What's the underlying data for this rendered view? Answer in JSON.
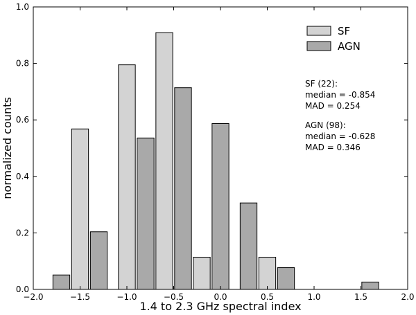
{
  "chart_data": {
    "type": "bar",
    "title": "",
    "xlabel": "1.4 to 2.3 GHz spectral index",
    "ylabel": "normalized counts",
    "xlim": [
      -2.0,
      2.0
    ],
    "ylim": [
      0.0,
      1.0
    ],
    "xticks": [
      "−2.0",
      "−1.5",
      "−1.0",
      "−0.5",
      "0.0",
      "0.5",
      "1.0",
      "1.5",
      "2.0"
    ],
    "yticks": [
      "0.0",
      "0.2",
      "0.4",
      "0.6",
      "0.8",
      "1.0"
    ],
    "grid": false,
    "legend_position": "top-right",
    "bar_width": 0.18,
    "series": [
      {
        "name": "SF",
        "color": "#d3d3d3",
        "bars": [
          {
            "x": -1.5,
            "value": 0.568
          },
          {
            "x": -1.0,
            "value": 0.795
          },
          {
            "x": -0.6,
            "value": 0.909
          },
          {
            "x": -0.2,
            "value": 0.114
          },
          {
            "x": 0.5,
            "value": 0.114
          }
        ]
      },
      {
        "name": "AGN",
        "color": "#a9a9a9",
        "bars": [
          {
            "x": -1.7,
            "value": 0.051
          },
          {
            "x": -1.3,
            "value": 0.204
          },
          {
            "x": -0.8,
            "value": 0.536
          },
          {
            "x": -0.4,
            "value": 0.714
          },
          {
            "x": 0.0,
            "value": 0.587
          },
          {
            "x": 0.3,
            "value": 0.306
          },
          {
            "x": 0.7,
            "value": 0.077
          },
          {
            "x": 1.6,
            "value": 0.026
          }
        ]
      }
    ],
    "annotations": [
      "SF (22):",
      "median = -0.854",
      "MAD = 0.254",
      "AGN (98):",
      "median = -0.628",
      "MAD = 0.346"
    ]
  }
}
